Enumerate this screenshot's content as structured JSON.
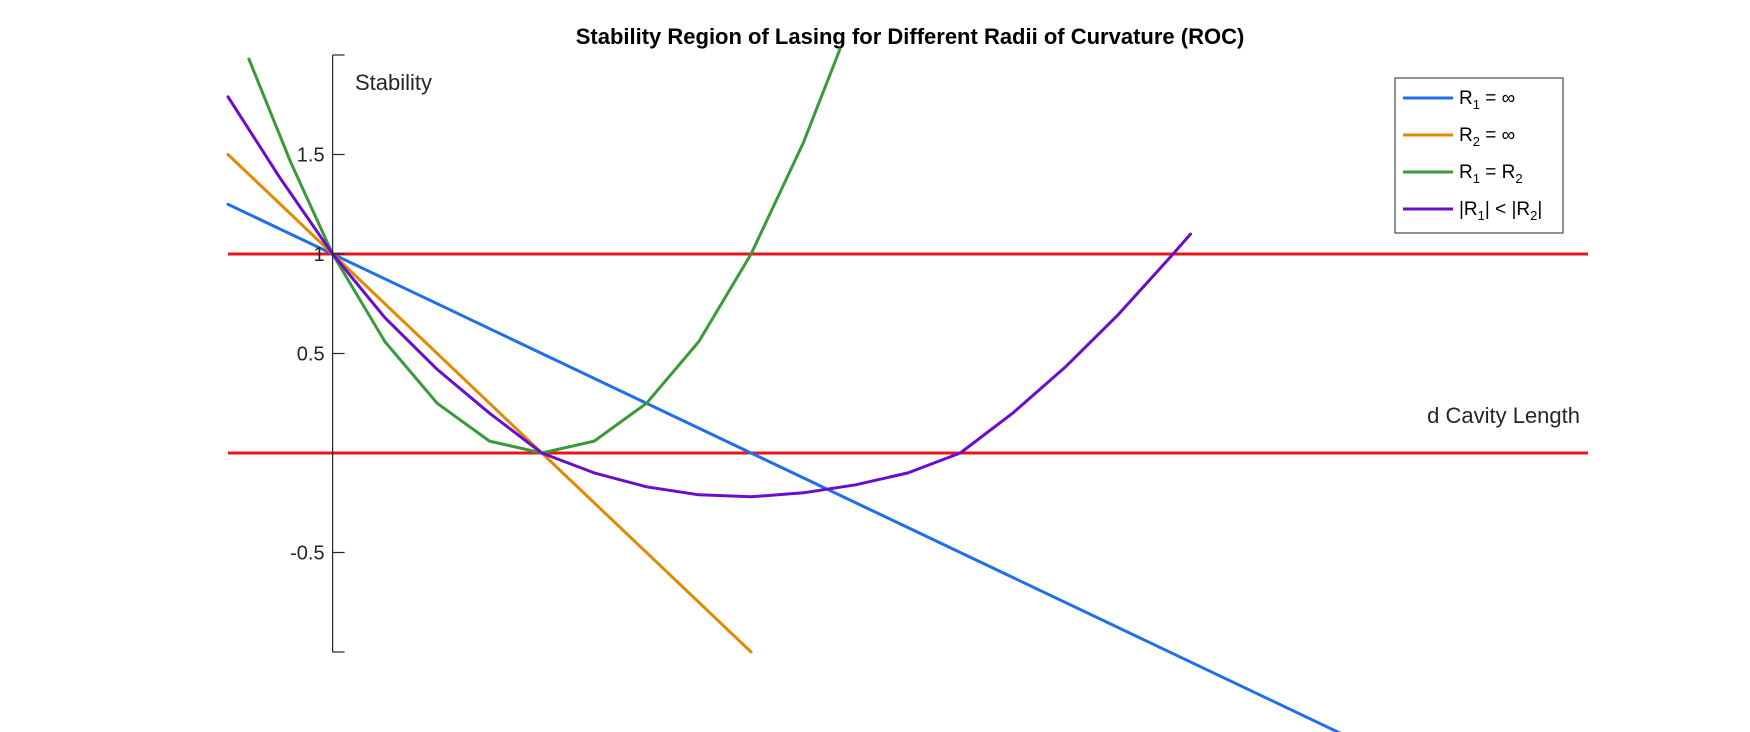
{
  "chart_data": {
    "type": "line",
    "title": "Stability Region of Lasing for Different Radii of Curvature (ROC)",
    "ylabel": "Stability",
    "xlabel": "d Cavity Length",
    "xlim": [
      -1,
      12
    ],
    "ylim": [
      -1,
      2
    ],
    "yticks": [
      -0.5,
      0.5,
      1,
      1.5
    ],
    "ytick_labels": [
      "-0.5",
      "0.5",
      "1",
      "1.5"
    ],
    "x_axis_at": 0,
    "y_axis_at": 0,
    "legend_position": "top-right",
    "series": [
      {
        "name": "R1 = ∞",
        "legend": {
          "main": "R",
          "sub": "1",
          "rest": " = ∞"
        },
        "color": "#1f6fe8",
        "x": [
          -1,
          0,
          6,
          10
        ],
        "y": [
          1.25,
          1,
          -0.5,
          -1.5
        ]
      },
      {
        "name": "R2 = ∞",
        "legend": {
          "main": "R",
          "sub": "2",
          "rest": " = ∞"
        },
        "color": "#e08a00",
        "x": [
          -1,
          0,
          2,
          4
        ],
        "y": [
          1.5,
          1,
          0,
          -1
        ]
      },
      {
        "name": "R1 = R2",
        "legend": {
          "main": "R",
          "sub": "1",
          "rest": " = R",
          "sub2": "2"
        },
        "color": "#3a9a3a",
        "x": [
          -0.8,
          -0.4,
          0,
          0.5,
          1,
          1.5,
          2,
          2.5,
          3,
          3.5,
          4,
          4.5,
          4.85
        ],
        "y": [
          1.98,
          1.46,
          1.0,
          0.56,
          0.25,
          0.06,
          0.0,
          0.06,
          0.25,
          0.56,
          1.0,
          1.56,
          2.03
        ]
      },
      {
        "name": "|R1| < |R2|",
        "legend": {
          "main": "|R",
          "sub": "1",
          "rest": "| < |R",
          "sub2": "2",
          "rest2": "|"
        },
        "color": "#6a0dcc",
        "x": [
          -1,
          -0.5,
          0,
          0.5,
          1,
          1.5,
          2,
          2.5,
          3,
          3.5,
          4,
          4.5,
          5,
          5.5,
          6,
          6.5,
          7,
          7.5,
          8,
          8.2
        ],
        "y": [
          1.79,
          1.38,
          1.0,
          0.68,
          0.42,
          0.2,
          0.0,
          -0.1,
          -0.17,
          -0.21,
          -0.22,
          -0.2,
          -0.16,
          -0.1,
          0.0,
          0.2,
          0.43,
          0.69,
          0.98,
          1.1
        ]
      }
    ],
    "reference_lines": [
      {
        "y": 1,
        "color": "#e8141c"
      },
      {
        "y": 0,
        "color": "#e8141c"
      }
    ]
  }
}
